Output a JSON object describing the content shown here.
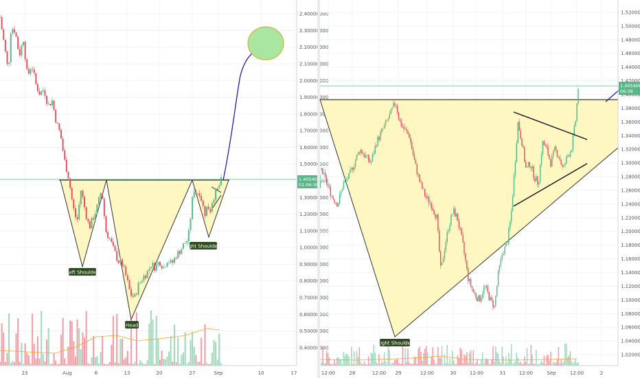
{
  "colors": {
    "up": "#53b987",
    "down": "#eb4d5c",
    "price_line": "#53b987",
    "pattern_fill": "#fff7c2",
    "target_fill": "#a8e6a1",
    "projection": "#1d1da8",
    "annotation_bg": "#2e4a1f",
    "badge_bg": "#53b987",
    "grid": "#eef1f5",
    "ma": "#ff9f1a"
  },
  "chart_data": [
    {
      "type": "candlestick",
      "panel": "left",
      "x_ticks": [
        "23",
        "Aug",
        "6",
        "13",
        "20",
        "27",
        "Sep",
        "10",
        "17"
      ],
      "y_ticks": [
        "2.40000000",
        "2.30000000",
        "2.20000000",
        "2.10000000",
        "2.00000000",
        "1.90000000",
        "1.80000000",
        "1.70000000",
        "1.60000000",
        "1.50000000",
        "1.40000000",
        "1.30000000",
        "1.20000000",
        "1.10000000",
        "1.00000000",
        "0.90000000",
        "0.80000000",
        "0.70000000",
        "0.60000000",
        "0.50000000",
        "0.40000000"
      ],
      "ylim": [
        0.35,
        2.45
      ],
      "price_badge": {
        "value": "1.40540664",
        "countdown": "01:06:38"
      },
      "neckline": 1.395,
      "path": [
        {
          "x": 0,
          "y": 2.38
        },
        {
          "x": 6,
          "y": 2.22
        },
        {
          "x": 12,
          "y": 2.05
        },
        {
          "x": 16,
          "y": 2.32
        },
        {
          "x": 22,
          "y": 2.3
        },
        {
          "x": 28,
          "y": 2.15
        },
        {
          "x": 34,
          "y": 2.25
        },
        {
          "x": 40,
          "y": 2.02
        },
        {
          "x": 46,
          "y": 2.1
        },
        {
          "x": 52,
          "y": 1.98
        },
        {
          "x": 58,
          "y": 1.92
        },
        {
          "x": 64,
          "y": 1.95
        },
        {
          "x": 70,
          "y": 1.85
        },
        {
          "x": 76,
          "y": 1.88
        },
        {
          "x": 82,
          "y": 1.75
        },
        {
          "x": 88,
          "y": 1.68
        },
        {
          "x": 94,
          "y": 1.52
        },
        {
          "x": 100,
          "y": 1.42
        },
        {
          "x": 106,
          "y": 1.25
        },
        {
          "x": 112,
          "y": 1.15
        },
        {
          "x": 118,
          "y": 1.35
        },
        {
          "x": 124,
          "y": 1.22
        },
        {
          "x": 130,
          "y": 1.12
        },
        {
          "x": 136,
          "y": 1.18
        },
        {
          "x": 142,
          "y": 1.25
        },
        {
          "x": 148,
          "y": 1.35
        },
        {
          "x": 154,
          "y": 1.1
        },
        {
          "x": 160,
          "y": 1.05
        },
        {
          "x": 166,
          "y": 0.98
        },
        {
          "x": 172,
          "y": 0.92
        },
        {
          "x": 178,
          "y": 0.9
        },
        {
          "x": 184,
          "y": 0.82
        },
        {
          "x": 190,
          "y": 0.72
        },
        {
          "x": 196,
          "y": 0.7
        },
        {
          "x": 202,
          "y": 0.78
        },
        {
          "x": 208,
          "y": 0.82
        },
        {
          "x": 214,
          "y": 0.85
        },
        {
          "x": 220,
          "y": 0.9
        },
        {
          "x": 226,
          "y": 0.88
        },
        {
          "x": 232,
          "y": 0.92
        },
        {
          "x": 238,
          "y": 0.88
        },
        {
          "x": 244,
          "y": 0.93
        },
        {
          "x": 250,
          "y": 0.9
        },
        {
          "x": 256,
          "y": 0.95
        },
        {
          "x": 262,
          "y": 0.98
        },
        {
          "x": 268,
          "y": 1.02
        },
        {
          "x": 274,
          "y": 1.05
        },
        {
          "x": 278,
          "y": 1.2
        },
        {
          "x": 282,
          "y": 1.36
        },
        {
          "x": 286,
          "y": 1.32
        },
        {
          "x": 290,
          "y": 1.34
        },
        {
          "x": 294,
          "y": 1.28
        },
        {
          "x": 298,
          "y": 1.2
        },
        {
          "x": 302,
          "y": 1.25
        },
        {
          "x": 306,
          "y": 1.22
        },
        {
          "x": 310,
          "y": 1.3
        },
        {
          "x": 314,
          "y": 1.32
        },
        {
          "x": 318,
          "y": 1.36
        },
        {
          "x": 322,
          "y": 1.4
        }
      ]
    },
    {
      "type": "candlestick",
      "panel": "right",
      "x_ticks": [
        "12:00",
        "28",
        "12:00",
        "29",
        "12:00",
        "30",
        "12:00",
        "31",
        "12:00",
        "Sep",
        "12:00",
        "2"
      ],
      "y_ticks": [
        "1.52000000",
        "1.50000000",
        "1.48000000",
        "1.46000000",
        "1.44000000",
        "1.42000000",
        "1.40000000",
        "1.38000000",
        "1.36000000",
        "1.34000000",
        "1.32000000",
        "1.30000000",
        "1.28000000",
        "1.26000000",
        "1.24000000",
        "1.22000000",
        "1.20000000",
        "1.18000000",
        "1.16000000",
        "1.14000000",
        "1.12000000",
        "1.10000000",
        "1.08000000",
        "1.06000000",
        "1.04000000",
        "1.02000000"
      ],
      "ylim": [
        1.01,
        1.53
      ],
      "price_badge": {
        "value": "1.40540664",
        "countdown": "06:38"
      },
      "neckline": 1.39,
      "path": [
        {
          "x": 0,
          "y": 1.29
        },
        {
          "x": 8,
          "y": 1.27
        },
        {
          "x": 16,
          "y": 1.25
        },
        {
          "x": 24,
          "y": 1.24
        },
        {
          "x": 32,
          "y": 1.27
        },
        {
          "x": 40,
          "y": 1.28
        },
        {
          "x": 48,
          "y": 1.3
        },
        {
          "x": 56,
          "y": 1.32
        },
        {
          "x": 64,
          "y": 1.31
        },
        {
          "x": 72,
          "y": 1.3
        },
        {
          "x": 80,
          "y": 1.33
        },
        {
          "x": 90,
          "y": 1.35
        },
        {
          "x": 100,
          "y": 1.37
        },
        {
          "x": 108,
          "y": 1.39
        },
        {
          "x": 114,
          "y": 1.36
        },
        {
          "x": 120,
          "y": 1.35
        },
        {
          "x": 128,
          "y": 1.34
        },
        {
          "x": 136,
          "y": 1.3
        },
        {
          "x": 144,
          "y": 1.27
        },
        {
          "x": 152,
          "y": 1.25
        },
        {
          "x": 160,
          "y": 1.24
        },
        {
          "x": 168,
          "y": 1.22
        },
        {
          "x": 174,
          "y": 1.14
        },
        {
          "x": 180,
          "y": 1.18
        },
        {
          "x": 186,
          "y": 1.21
        },
        {
          "x": 192,
          "y": 1.23
        },
        {
          "x": 198,
          "y": 1.22
        },
        {
          "x": 206,
          "y": 1.18
        },
        {
          "x": 214,
          "y": 1.13
        },
        {
          "x": 222,
          "y": 1.11
        },
        {
          "x": 230,
          "y": 1.1
        },
        {
          "x": 238,
          "y": 1.12
        },
        {
          "x": 246,
          "y": 1.1
        },
        {
          "x": 252,
          "y": 1.09
        },
        {
          "x": 258,
          "y": 1.14
        },
        {
          "x": 264,
          "y": 1.17
        },
        {
          "x": 270,
          "y": 1.18
        },
        {
          "x": 276,
          "y": 1.22
        },
        {
          "x": 282,
          "y": 1.3
        },
        {
          "x": 286,
          "y": 1.36
        },
        {
          "x": 292,
          "y": 1.33
        },
        {
          "x": 298,
          "y": 1.29
        },
        {
          "x": 304,
          "y": 1.3
        },
        {
          "x": 310,
          "y": 1.28
        },
        {
          "x": 316,
          "y": 1.27
        },
        {
          "x": 322,
          "y": 1.33
        },
        {
          "x": 328,
          "y": 1.32
        },
        {
          "x": 334,
          "y": 1.3
        },
        {
          "x": 340,
          "y": 1.32
        },
        {
          "x": 346,
          "y": 1.31
        },
        {
          "x": 352,
          "y": 1.29
        },
        {
          "x": 358,
          "y": 1.31
        },
        {
          "x": 364,
          "y": 1.32
        },
        {
          "x": 370,
          "y": 1.36
        },
        {
          "x": 374,
          "y": 1.41
        }
      ]
    }
  ],
  "annotations": {
    "left_shoulder": "Left Shoulder",
    "head": "Head",
    "right_shoulder_left_panel": "ight Shoulder",
    "right_shoulder_right_panel": "Right Shoulder"
  }
}
